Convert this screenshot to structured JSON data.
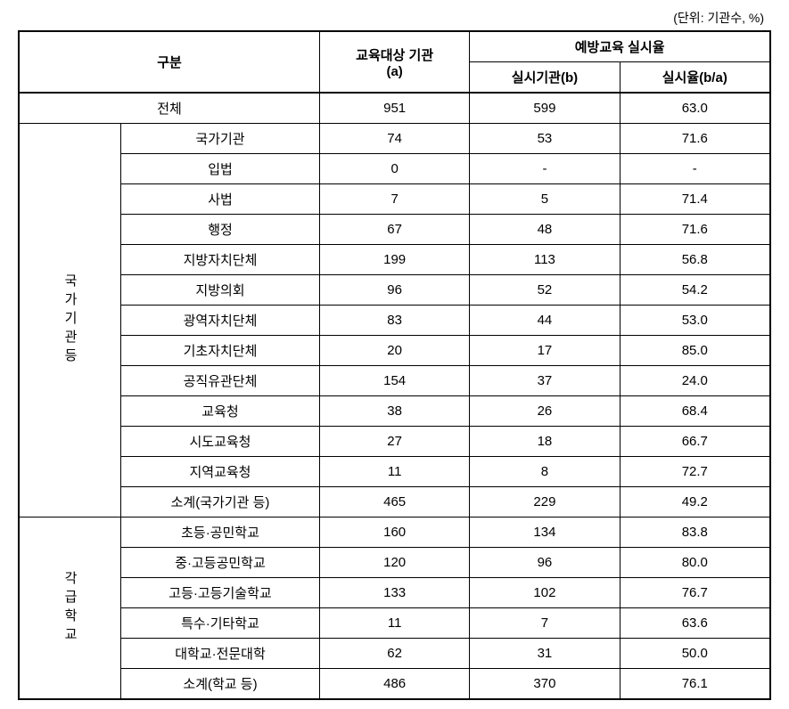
{
  "unit_label": "(단위: 기관수, %)",
  "headers": {
    "gubun": "구분",
    "target_org": "교육대상 기관\n(a)",
    "prevention_rate": "예방교육 실시율",
    "exec_org": "실시기관(b)",
    "exec_rate": "실시율(b/a)"
  },
  "total_row": {
    "label": "전체",
    "a": "951",
    "b": "599",
    "ba": "63.0"
  },
  "section1": {
    "label": "국가기관등",
    "rows": [
      {
        "label": "국가기관",
        "a": "74",
        "b": "53",
        "ba": "71.6"
      },
      {
        "label": "입법",
        "a": "0",
        "b": "-",
        "ba": "-"
      },
      {
        "label": "사법",
        "a": "7",
        "b": "5",
        "ba": "71.4"
      },
      {
        "label": "행정",
        "a": "67",
        "b": "48",
        "ba": "71.6"
      },
      {
        "label": "지방자치단체",
        "a": "199",
        "b": "113",
        "ba": "56.8"
      },
      {
        "label": "지방의회",
        "a": "96",
        "b": "52",
        "ba": "54.2"
      },
      {
        "label": "광역자치단체",
        "a": "83",
        "b": "44",
        "ba": "53.0"
      },
      {
        "label": "기초자치단체",
        "a": "20",
        "b": "17",
        "ba": "85.0"
      },
      {
        "label": "공직유관단체",
        "a": "154",
        "b": "37",
        "ba": "24.0"
      },
      {
        "label": "교육청",
        "a": "38",
        "b": "26",
        "ba": "68.4"
      },
      {
        "label": "시도교육청",
        "a": "27",
        "b": "18",
        "ba": "66.7"
      },
      {
        "label": "지역교육청",
        "a": "11",
        "b": "8",
        "ba": "72.7"
      },
      {
        "label": "소계(국가기관 등)",
        "a": "465",
        "b": "229",
        "ba": "49.2"
      }
    ]
  },
  "section2": {
    "label": "각급학교",
    "rows": [
      {
        "label": "초등·공민학교",
        "a": "160",
        "b": "134",
        "ba": "83.8"
      },
      {
        "label": "중·고등공민학교",
        "a": "120",
        "b": "96",
        "ba": "80.0"
      },
      {
        "label": "고등·고등기술학교",
        "a": "133",
        "b": "102",
        "ba": "76.7"
      },
      {
        "label": "특수·기타학교",
        "a": "11",
        "b": "7",
        "ba": "63.6"
      },
      {
        "label": "대학교·전문대학",
        "a": "62",
        "b": "31",
        "ba": "50.0"
      },
      {
        "label": "소계(학교 등)",
        "a": "486",
        "b": "370",
        "ba": "76.1"
      }
    ]
  }
}
